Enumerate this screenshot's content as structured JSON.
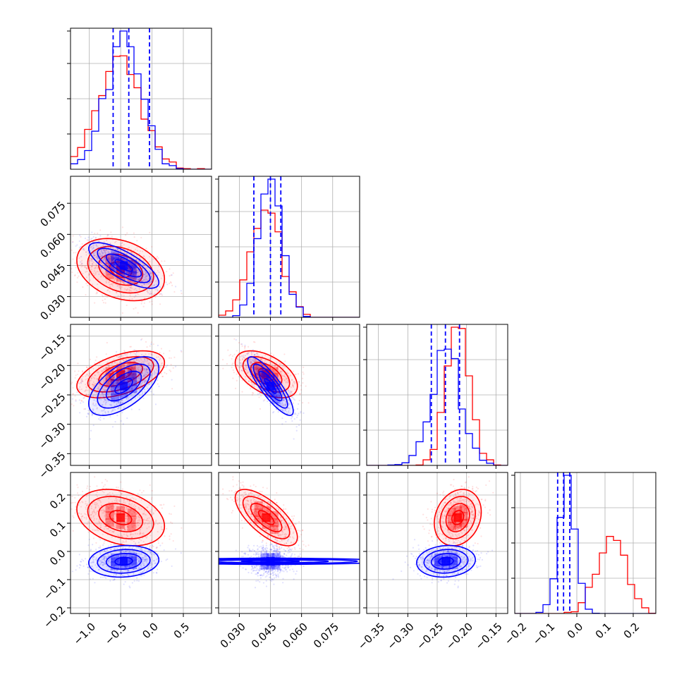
{
  "chart_data": {
    "type": "corner",
    "grid": true,
    "parameters": [
      {
        "ticks": [
          -1.0,
          -0.5,
          0.0,
          0.5
        ],
        "tick_labels": [
          "−1.0",
          "−0.5",
          "0.0",
          "0.5"
        ],
        "range": [
          -1.3,
          0.95
        ]
      },
      {
        "ticks": [
          0.03,
          0.045,
          0.06,
          0.075
        ],
        "tick_labels": [
          "0.030",
          "0.045",
          "0.060",
          "0.075"
        ],
        "range": [
          0.02,
          0.088
        ]
      },
      {
        "ticks": [
          -0.35,
          -0.3,
          -0.25,
          -0.2,
          -0.15
        ],
        "tick_labels": [
          "−0.35",
          "−0.30",
          "−0.25",
          "−0.20",
          "−0.15"
        ],
        "range": [
          -0.37,
          -0.13
        ]
      },
      {
        "ticks": [
          -0.2,
          -0.1,
          0.0,
          0.1,
          0.2
        ],
        "tick_labels": [
          "−0.2",
          "−0.1",
          "0.0",
          "0.1",
          "0.2"
        ],
        "range": [
          -0.22,
          0.28
        ]
      }
    ],
    "series": [
      {
        "color": "#ff0000",
        "means": [
          -0.5,
          0.043,
          -0.215,
          0.12
        ],
        "stds": [
          0.35,
          0.0075,
          0.02,
          0.05
        ],
        "corr": {
          "0-1": -0.3,
          "0-2": 0.5,
          "1-2": -0.5,
          "0-3": -0.3,
          "1-3": -0.7,
          "2-3": 0.2
        }
      },
      {
        "color": "#0000ff",
        "means": [
          -0.45,
          0.045,
          -0.235,
          -0.035
        ],
        "stds": [
          0.28,
          0.0055,
          0.025,
          0.028
        ],
        "corr": {
          "0-1": -0.75,
          "0-2": 0.6,
          "1-2": -0.85,
          "0-3": 0.1,
          "1-3": 0.0,
          "2-3": 0.1
        }
      }
    ],
    "quantile_lines": {
      "color": "#0000ff",
      "style": "dashed",
      "values": [
        [
          -0.62,
          -0.37,
          -0.04
        ],
        [
          0.037,
          0.045,
          0.05
        ],
        [
          -0.26,
          -0.236,
          -0.212
        ],
        [
          -0.068,
          -0.047,
          -0.025
        ]
      ]
    }
  }
}
